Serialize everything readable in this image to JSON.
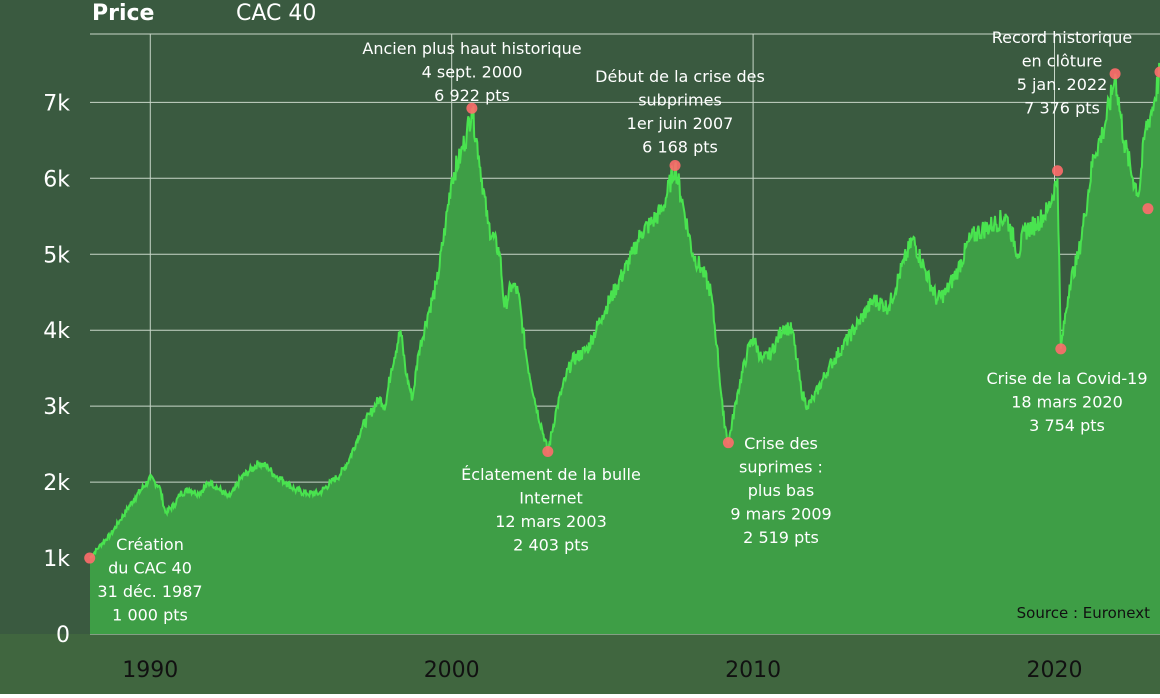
{
  "chart_data": {
    "type": "area",
    "title": "Price",
    "subtitle": "CAC 40",
    "xlabel": "",
    "ylabel": "",
    "xlim": [
      1988.0,
      2023.5
    ],
    "ylim": [
      0,
      7900
    ],
    "x_ticks": [
      {
        "value": 1990,
        "label": "1990"
      },
      {
        "value": 2000,
        "label": "2000"
      },
      {
        "value": 2010,
        "label": "2010"
      },
      {
        "value": 2020,
        "label": "2020"
      }
    ],
    "y_ticks": [
      {
        "value": 0,
        "label": "0"
      },
      {
        "value": 1000,
        "label": "1k"
      },
      {
        "value": 2000,
        "label": "2k"
      },
      {
        "value": 3000,
        "label": "3k"
      },
      {
        "value": 4000,
        "label": "4k"
      },
      {
        "value": 5000,
        "label": "5k"
      },
      {
        "value": 6000,
        "label": "6k"
      },
      {
        "value": 7000,
        "label": "7k"
      }
    ],
    "grid": true,
    "colors": {
      "background": "#3a5a40",
      "area": "#3e9e46",
      "line": "#49e34f",
      "marker": "#ff6b6b",
      "grid": "#c8d6c8"
    },
    "series": [
      {
        "x": [
          1988.0,
          1988.3,
          1988.7,
          1989.0,
          1989.5,
          1990.0,
          1990.3,
          1990.5,
          1990.8,
          1991.0,
          1991.3,
          1991.6,
          1992.0,
          1992.3,
          1992.6,
          1992.8,
          1993.0,
          1993.3,
          1993.6,
          1993.9,
          1994.1,
          1994.5,
          1994.8,
          1995.2,
          1995.6,
          1996.0,
          1996.3,
          1996.6,
          1997.0,
          1997.3,
          1997.6,
          1997.8,
          1998.0,
          1998.3,
          1998.5,
          1998.7,
          1998.9,
          1999.2,
          1999.5,
          1999.8,
          2000.0,
          2000.3,
          2000.5,
          2000.67,
          2000.9,
          2001.2,
          2001.6,
          2001.75,
          2002.0,
          2002.2,
          2002.5,
          2002.8,
          2003.0,
          2003.19,
          2003.5,
          2003.8,
          2004.0,
          2004.5,
          2005.0,
          2005.5,
          2006.0,
          2006.3,
          2006.6,
          2007.0,
          2007.41,
          2007.7,
          2008.0,
          2008.3,
          2008.6,
          2008.8,
          2009.0,
          2009.18,
          2009.5,
          2009.8,
          2010.0,
          2010.3,
          2010.6,
          2011.0,
          2011.3,
          2011.6,
          2011.8,
          2012.0,
          2012.5,
          2013.0,
          2013.5,
          2014.0,
          2014.5,
          2015.0,
          2015.3,
          2015.7,
          2016.1,
          2016.4,
          2016.8,
          2017.2,
          2017.5,
          2018.0,
          2018.4,
          2018.8,
          2019.0,
          2019.4,
          2019.8,
          2020.1,
          2020.21,
          2020.5,
          2020.8,
          2021.0,
          2021.3,
          2021.6,
          2021.9,
          2022.01,
          2022.3,
          2022.6,
          2022.8,
          2023.0,
          2023.3,
          2023.5
        ],
        "y": [
          1000,
          1150,
          1320,
          1500,
          1800,
          2050,
          1950,
          1600,
          1700,
          1850,
          1900,
          1850,
          2000,
          1900,
          1800,
          1900,
          2050,
          2150,
          2250,
          2200,
          2100,
          2000,
          1900,
          1850,
          1850,
          2000,
          2100,
          2300,
          2700,
          2900,
          3100,
          3000,
          3500,
          4000,
          3400,
          3100,
          3700,
          4200,
          4600,
          5400,
          6000,
          6300,
          6600,
          6922,
          6300,
          5400,
          5000,
          4300,
          4600,
          4500,
          3600,
          3000,
          2700,
          2403,
          3000,
          3400,
          3600,
          3750,
          4200,
          4600,
          5000,
          5300,
          5400,
          5600,
          6168,
          5600,
          5000,
          4800,
          4500,
          3800,
          2900,
          2519,
          3200,
          3700,
          3900,
          3600,
          3700,
          4050,
          4000,
          3200,
          3000,
          3100,
          3500,
          3800,
          4100,
          4400,
          4300,
          4900,
          5200,
          4800,
          4400,
          4500,
          4800,
          5200,
          5300,
          5400,
          5500,
          5000,
          5300,
          5400,
          5600,
          6000,
          3754,
          4600,
          5000,
          5500,
          6300,
          6600,
          7100,
          7376,
          6500,
          6000,
          5800,
          6600,
          7000,
          7400
        ]
      }
    ],
    "annotations": [
      {
        "x": 1987.99,
        "y": 1000,
        "lines": [
          "Création",
          "du CAC 40",
          "31 déc. 1987",
          "1 000 pts"
        ]
      },
      {
        "x": 2000.67,
        "y": 6922,
        "lines": [
          "Ancien plus haut historique",
          "4 sept. 2000",
          "6 922 pts"
        ]
      },
      {
        "x": 2003.19,
        "y": 2403,
        "lines": [
          "Éclatement de la bulle",
          "Internet",
          "12 mars 2003",
          "2 403 pts"
        ]
      },
      {
        "x": 2007.41,
        "y": 6168,
        "lines": [
          "Début de la crise des",
          "subprimes",
          "1er juin 2007",
          "6 168 pts"
        ]
      },
      {
        "x": 2009.18,
        "y": 2519,
        "lines": [
          "Crise des",
          "suprimes :",
          "plus bas",
          "9 mars 2009",
          "2 519 pts"
        ]
      },
      {
        "x": 2020.21,
        "y": 3754,
        "lines": [
          "Crise de la Covid-19",
          "18 mars 2020",
          "3 754 pts"
        ]
      },
      {
        "x": 2022.01,
        "y": 7376,
        "lines": [
          "Record historique",
          "en clôture",
          "5 jan. 2022",
          "7 376 pts"
        ]
      }
    ],
    "extra_markers": [
      {
        "x": 2020.1,
        "y": 6100
      },
      {
        "x": 2023.1,
        "y": 5600
      },
      {
        "x": 2023.5,
        "y": 7400
      }
    ],
    "source": "Source : Euronext"
  }
}
